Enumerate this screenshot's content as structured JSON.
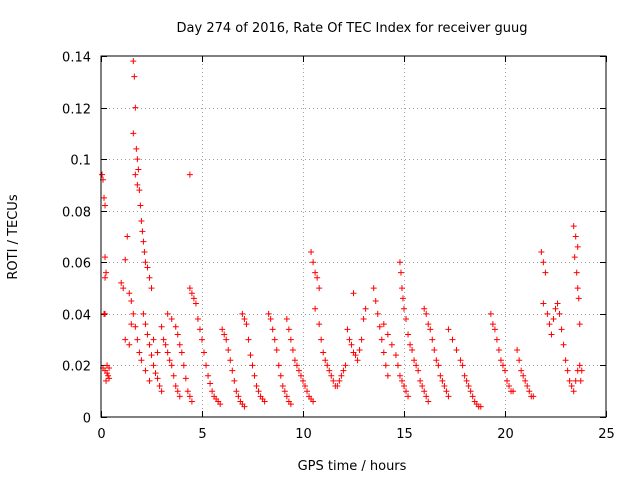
{
  "chart_data": {
    "type": "scatter",
    "title": "Day 274 of 2016, Rate Of TEC Index for receiver guug",
    "xlabel": "GPS time / hours",
    "ylabel": "ROTI / TECUs",
    "xlim": [
      0,
      25
    ],
    "ylim": [
      0,
      0.14
    ],
    "xticks": [
      0,
      5,
      10,
      15,
      20,
      25
    ],
    "xtick_labels": [
      "0",
      "5",
      "10",
      "15",
      "20",
      "25"
    ],
    "yticks": [
      0,
      0.02,
      0.04,
      0.06,
      0.08,
      0.1,
      0.12,
      0.14
    ],
    "ytick_labels": [
      "0",
      "0.02",
      "0.04",
      "0.06",
      "0.08",
      "0.1",
      "0.12",
      "0.14"
    ],
    "grid": true,
    "marker": "+",
    "color": "#ff0000",
    "series": [
      {
        "name": "ROTI",
        "points": [
          [
            0.05,
            0.094
          ],
          [
            0.1,
            0.092
          ],
          [
            0.15,
            0.085
          ],
          [
            0.2,
            0.082
          ],
          [
            0.2,
            0.062
          ],
          [
            0.25,
            0.056
          ],
          [
            0.2,
            0.054
          ],
          [
            0.15,
            0.04
          ],
          [
            0.2,
            0.04
          ],
          [
            0.1,
            0.019
          ],
          [
            0.2,
            0.018
          ],
          [
            0.3,
            0.017
          ],
          [
            0.35,
            0.016
          ],
          [
            0.4,
            0.015
          ],
          [
            0.25,
            0.014
          ],
          [
            0.3,
            0.02
          ],
          [
            0.4,
            0.019
          ],
          [
            1.0,
            0.052
          ],
          [
            1.1,
            0.05
          ],
          [
            1.2,
            0.061
          ],
          [
            1.3,
            0.07
          ],
          [
            1.4,
            0.048
          ],
          [
            1.5,
            0.045
          ],
          [
            1.2,
            0.03
          ],
          [
            1.4,
            0.028
          ],
          [
            1.5,
            0.036
          ],
          [
            1.6,
            0.138
          ],
          [
            1.65,
            0.132
          ],
          [
            1.7,
            0.12
          ],
          [
            1.6,
            0.11
          ],
          [
            1.75,
            0.104
          ],
          [
            1.8,
            0.1
          ],
          [
            1.85,
            0.096
          ],
          [
            1.7,
            0.094
          ],
          [
            1.8,
            0.09
          ],
          [
            1.9,
            0.088
          ],
          [
            1.95,
            0.082
          ],
          [
            2.0,
            0.076
          ],
          [
            2.05,
            0.072
          ],
          [
            2.1,
            0.068
          ],
          [
            2.15,
            0.064
          ],
          [
            2.2,
            0.06
          ],
          [
            2.3,
            0.058
          ],
          [
            2.4,
            0.054
          ],
          [
            2.5,
            0.05
          ],
          [
            1.6,
            0.04
          ],
          [
            1.7,
            0.035
          ],
          [
            1.8,
            0.03
          ],
          [
            1.9,
            0.025
          ],
          [
            2.0,
            0.022
          ],
          [
            2.1,
            0.04
          ],
          [
            2.2,
            0.036
          ],
          [
            2.3,
            0.032
          ],
          [
            2.4,
            0.028
          ],
          [
            2.5,
            0.024
          ],
          [
            2.6,
            0.02
          ],
          [
            2.7,
            0.017
          ],
          [
            2.8,
            0.015
          ],
          [
            2.9,
            0.012
          ],
          [
            3.0,
            0.01
          ],
          [
            2.2,
            0.018
          ],
          [
            2.4,
            0.014
          ],
          [
            2.6,
            0.03
          ],
          [
            2.8,
            0.025
          ],
          [
            3.0,
            0.035
          ],
          [
            3.1,
            0.03
          ],
          [
            3.2,
            0.028
          ],
          [
            3.3,
            0.025
          ],
          [
            3.4,
            0.022
          ],
          [
            3.5,
            0.02
          ],
          [
            3.6,
            0.016
          ],
          [
            3.7,
            0.012
          ],
          [
            3.8,
            0.01
          ],
          [
            3.9,
            0.008
          ],
          [
            3.3,
            0.04
          ],
          [
            3.5,
            0.038
          ],
          [
            3.7,
            0.035
          ],
          [
            3.8,
            0.032
          ],
          [
            3.9,
            0.028
          ],
          [
            4.0,
            0.025
          ],
          [
            4.1,
            0.02
          ],
          [
            4.2,
            0.015
          ],
          [
            4.3,
            0.01
          ],
          [
            4.4,
            0.008
          ],
          [
            4.5,
            0.006
          ],
          [
            4.4,
            0.094
          ],
          [
            4.4,
            0.05
          ],
          [
            4.5,
            0.048
          ],
          [
            4.6,
            0.046
          ],
          [
            4.7,
            0.044
          ],
          [
            4.8,
            0.038
          ],
          [
            4.9,
            0.034
          ],
          [
            5.0,
            0.03
          ],
          [
            5.1,
            0.025
          ],
          [
            5.2,
            0.02
          ],
          [
            5.3,
            0.016
          ],
          [
            5.4,
            0.013
          ],
          [
            5.5,
            0.01
          ],
          [
            5.6,
            0.008
          ],
          [
            5.7,
            0.007
          ],
          [
            5.8,
            0.006
          ],
          [
            5.9,
            0.005
          ],
          [
            6.0,
            0.034
          ],
          [
            6.1,
            0.032
          ],
          [
            6.2,
            0.03
          ],
          [
            6.3,
            0.026
          ],
          [
            6.4,
            0.022
          ],
          [
            6.5,
            0.018
          ],
          [
            6.6,
            0.014
          ],
          [
            6.7,
            0.01
          ],
          [
            6.8,
            0.008
          ],
          [
            6.9,
            0.006
          ],
          [
            7.0,
            0.005
          ],
          [
            7.1,
            0.004
          ],
          [
            7.0,
            0.04
          ],
          [
            7.1,
            0.038
          ],
          [
            7.2,
            0.036
          ],
          [
            7.3,
            0.03
          ],
          [
            7.4,
            0.024
          ],
          [
            7.5,
            0.02
          ],
          [
            7.6,
            0.016
          ],
          [
            7.7,
            0.012
          ],
          [
            7.8,
            0.01
          ],
          [
            7.9,
            0.008
          ],
          [
            8.0,
            0.007
          ],
          [
            8.1,
            0.006
          ],
          [
            8.3,
            0.04
          ],
          [
            8.4,
            0.038
          ],
          [
            8.5,
            0.034
          ],
          [
            8.6,
            0.03
          ],
          [
            8.7,
            0.026
          ],
          [
            8.8,
            0.02
          ],
          [
            8.9,
            0.016
          ],
          [
            9.0,
            0.012
          ],
          [
            9.1,
            0.01
          ],
          [
            9.2,
            0.008
          ],
          [
            9.3,
            0.006
          ],
          [
            9.4,
            0.005
          ],
          [
            9.2,
            0.038
          ],
          [
            9.3,
            0.034
          ],
          [
            9.4,
            0.03
          ],
          [
            9.5,
            0.026
          ],
          [
            9.6,
            0.022
          ],
          [
            9.7,
            0.02
          ],
          [
            9.8,
            0.018
          ],
          [
            9.9,
            0.016
          ],
          [
            10.0,
            0.014
          ],
          [
            10.1,
            0.012
          ],
          [
            10.2,
            0.01
          ],
          [
            10.3,
            0.008
          ],
          [
            10.4,
            0.007
          ],
          [
            10.5,
            0.006
          ],
          [
            10.4,
            0.064
          ],
          [
            10.5,
            0.06
          ],
          [
            10.6,
            0.056
          ],
          [
            10.7,
            0.054
          ],
          [
            10.8,
            0.05
          ],
          [
            10.6,
            0.042
          ],
          [
            10.8,
            0.036
          ],
          [
            10.9,
            0.03
          ],
          [
            11.0,
            0.025
          ],
          [
            11.1,
            0.022
          ],
          [
            11.2,
            0.02
          ],
          [
            11.3,
            0.018
          ],
          [
            11.4,
            0.016
          ],
          [
            11.5,
            0.014
          ],
          [
            11.6,
            0.012
          ],
          [
            11.7,
            0.012
          ],
          [
            11.8,
            0.014
          ],
          [
            11.9,
            0.016
          ],
          [
            12.0,
            0.018
          ],
          [
            12.1,
            0.02
          ],
          [
            12.2,
            0.034
          ],
          [
            12.3,
            0.03
          ],
          [
            12.4,
            0.028
          ],
          [
            12.5,
            0.025
          ],
          [
            12.6,
            0.024
          ],
          [
            12.7,
            0.022
          ],
          [
            12.8,
            0.026
          ],
          [
            12.9,
            0.03
          ],
          [
            13.0,
            0.038
          ],
          [
            13.1,
            0.042
          ],
          [
            12.5,
            0.048
          ],
          [
            13.5,
            0.05
          ],
          [
            13.6,
            0.045
          ],
          [
            13.7,
            0.04
          ],
          [
            13.8,
            0.035
          ],
          [
            13.9,
            0.03
          ],
          [
            14.0,
            0.025
          ],
          [
            14.1,
            0.02
          ],
          [
            14.2,
            0.016
          ],
          [
            14.0,
            0.036
          ],
          [
            14.2,
            0.032
          ],
          [
            14.4,
            0.028
          ],
          [
            14.6,
            0.024
          ],
          [
            14.7,
            0.02
          ],
          [
            14.8,
            0.016
          ],
          [
            14.9,
            0.014
          ],
          [
            15.0,
            0.012
          ],
          [
            15.1,
            0.01
          ],
          [
            15.2,
            0.008
          ],
          [
            14.8,
            0.06
          ],
          [
            14.85,
            0.056
          ],
          [
            14.9,
            0.05
          ],
          [
            14.95,
            0.046
          ],
          [
            15.0,
            0.042
          ],
          [
            15.1,
            0.038
          ],
          [
            15.2,
            0.032
          ],
          [
            15.3,
            0.028
          ],
          [
            15.4,
            0.026
          ],
          [
            15.5,
            0.022
          ],
          [
            15.6,
            0.02
          ],
          [
            15.7,
            0.018
          ],
          [
            15.8,
            0.014
          ],
          [
            15.9,
            0.012
          ],
          [
            16.0,
            0.01
          ],
          [
            16.1,
            0.008
          ],
          [
            16.2,
            0.006
          ],
          [
            16.0,
            0.042
          ],
          [
            16.1,
            0.04
          ],
          [
            16.2,
            0.036
          ],
          [
            16.3,
            0.034
          ],
          [
            16.4,
            0.03
          ],
          [
            16.5,
            0.026
          ],
          [
            16.6,
            0.022
          ],
          [
            16.7,
            0.02
          ],
          [
            16.8,
            0.016
          ],
          [
            16.9,
            0.014
          ],
          [
            17.0,
            0.012
          ],
          [
            17.1,
            0.01
          ],
          [
            17.2,
            0.008
          ],
          [
            17.2,
            0.034
          ],
          [
            17.4,
            0.03
          ],
          [
            17.6,
            0.026
          ],
          [
            17.8,
            0.022
          ],
          [
            17.9,
            0.02
          ],
          [
            18.0,
            0.016
          ],
          [
            18.1,
            0.014
          ],
          [
            18.2,
            0.012
          ],
          [
            18.3,
            0.01
          ],
          [
            18.4,
            0.008
          ],
          [
            18.5,
            0.006
          ],
          [
            18.6,
            0.005
          ],
          [
            18.7,
            0.004
          ],
          [
            18.8,
            0.004
          ],
          [
            19.3,
            0.04
          ],
          [
            19.4,
            0.036
          ],
          [
            19.5,
            0.034
          ],
          [
            19.6,
            0.03
          ],
          [
            19.7,
            0.026
          ],
          [
            19.8,
            0.022
          ],
          [
            19.9,
            0.02
          ],
          [
            20.0,
            0.018
          ],
          [
            20.1,
            0.014
          ],
          [
            20.2,
            0.012
          ],
          [
            20.3,
            0.01
          ],
          [
            20.4,
            0.01
          ],
          [
            20.6,
            0.026
          ],
          [
            20.7,
            0.022
          ],
          [
            20.8,
            0.018
          ],
          [
            20.9,
            0.016
          ],
          [
            21.0,
            0.014
          ],
          [
            21.1,
            0.012
          ],
          [
            21.2,
            0.01
          ],
          [
            21.3,
            0.008
          ],
          [
            21.4,
            0.008
          ],
          [
            21.8,
            0.064
          ],
          [
            21.9,
            0.06
          ],
          [
            22.0,
            0.056
          ],
          [
            21.9,
            0.044
          ],
          [
            22.1,
            0.04
          ],
          [
            22.2,
            0.036
          ],
          [
            22.3,
            0.032
          ],
          [
            22.4,
            0.038
          ],
          [
            22.5,
            0.042
          ],
          [
            22.6,
            0.044
          ],
          [
            22.7,
            0.04
          ],
          [
            22.8,
            0.034
          ],
          [
            22.9,
            0.028
          ],
          [
            23.0,
            0.022
          ],
          [
            23.1,
            0.018
          ],
          [
            23.2,
            0.014
          ],
          [
            23.3,
            0.012
          ],
          [
            23.4,
            0.01
          ],
          [
            23.5,
            0.014
          ],
          [
            23.6,
            0.018
          ],
          [
            23.7,
            0.02
          ],
          [
            23.4,
            0.074
          ],
          [
            23.5,
            0.07
          ],
          [
            23.6,
            0.066
          ],
          [
            23.45,
            0.062
          ],
          [
            23.55,
            0.056
          ],
          [
            23.6,
            0.05
          ],
          [
            23.65,
            0.046
          ],
          [
            23.7,
            0.036
          ],
          [
            23.8,
            0.018
          ],
          [
            23.75,
            0.014
          ]
        ]
      }
    ]
  }
}
